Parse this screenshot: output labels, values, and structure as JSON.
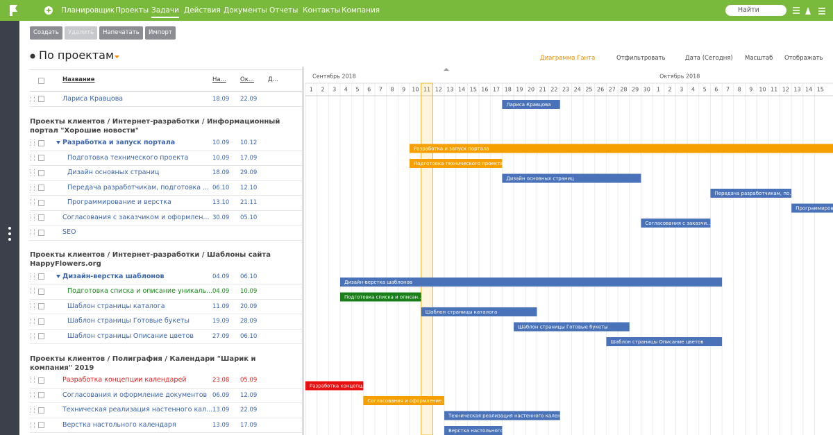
{
  "nav": {
    "items": [
      "Планировщик",
      "Проекты",
      "Задачи",
      "Действия",
      "Документы",
      "Отчеты",
      "Контакты",
      "Компания"
    ],
    "active": 2,
    "search": "Найти"
  },
  "toolbar": {
    "buttons": [
      "Создать",
      "Удалить",
      "Напечатать",
      "Импорт"
    ],
    "disabled": [
      1
    ]
  },
  "view": {
    "title": "По проектам",
    "controls": [
      "Диаграмма Ганта",
      "Отфильтровать",
      "Дата (Сегодня)",
      "Масштаб",
      "Отображать"
    ]
  },
  "table": {
    "columns": [
      "Название",
      "На...",
      "Ок...",
      "Д..."
    ]
  },
  "timeline": {
    "months": [
      "Сентябрь 2018",
      "Октябрь 2018"
    ],
    "days": [
      [
        1,
        2,
        3,
        4,
        5,
        6,
        7,
        8,
        9,
        10,
        11,
        12,
        13,
        14,
        15,
        16,
        17,
        18,
        19,
        20,
        21,
        22,
        23,
        24,
        25,
        26,
        27,
        28,
        29,
        30
      ],
      [
        1,
        2,
        3,
        4,
        5,
        6,
        7,
        8,
        9,
        10,
        11,
        12,
        13,
        14,
        15
      ]
    ]
  },
  "rows": [
    {
      "kind": "task",
      "name": "Лариса Кравцова",
      "start": "18.09",
      "end": "22.09",
      "bar": "Лариса Кравцова",
      "bar_color": "#4a72b8"
    },
    {
      "kind": "group",
      "title": "Проекты клиентов / Интернет-разработки / Информационный портал \"Хорошие новости\""
    },
    {
      "kind": "summary",
      "name": "Разработка и запуск портала",
      "start": "10.09",
      "end": "10.12",
      "bar": "Разработка и запуск портала",
      "bar_color": "#f5a000"
    },
    {
      "kind": "subtask",
      "name": "Подготовка технического проекта",
      "start": "10.09",
      "end": "17.09",
      "bar": "Подготовка технического проекта",
      "bar_color": "#f5a000"
    },
    {
      "kind": "subtask",
      "name": "Дизайн основных страниц",
      "start": "18.09",
      "end": "29.09",
      "bar": "Дизайн основных страниц",
      "bar_color": "#4a72b8"
    },
    {
      "kind": "subtask",
      "name": "Передача разработчикам, подготовка ...",
      "start": "06.10",
      "end": "12.10",
      "bar": "Передача разработчикам, по...",
      "bar_color": "#4a72b8"
    },
    {
      "kind": "subtask",
      "name": "Программирование и верстка",
      "start": "13.10",
      "end": "21.11",
      "bar": "Программирование и верстка",
      "bar_color": "#4a72b8"
    },
    {
      "kind": "task",
      "name": "Согласования с заказчиком и оформлен...",
      "start": "30.09",
      "end": "05.10",
      "bar": "Согласования с заказчи...",
      "bar_color": "#4a72b8"
    },
    {
      "kind": "task",
      "name": "SEO"
    },
    {
      "kind": "group",
      "title": "Проекты клиентов / Интернет-разработки / Шаблоны сайта HappyFlowers.org"
    },
    {
      "kind": "summary",
      "name": "Дизайн-верстка шаблонов",
      "start": "04.09",
      "end": "06.10",
      "bar": "Дизайн-верстка шаблонов",
      "bar_color": "#4a72b8"
    },
    {
      "kind": "subtask",
      "name": "Подготовка списка и описание уникаль...",
      "start": "04.09",
      "end": "10.09",
      "bar": "Подготовка списка и описан...",
      "bar_color": "#1a7f1a",
      "text_color": "#1a8a1a"
    },
    {
      "kind": "subtask",
      "name": "Шаблон страницы каталога",
      "start": "11.09",
      "end": "20.09",
      "bar": "Шаблон страницы каталога",
      "bar_color": "#4a72b8"
    },
    {
      "kind": "subtask",
      "name": "Шаблон страницы Готовые букеты",
      "start": "19.09",
      "end": "28.09",
      "bar": "Шаблон страницы Готовые букеты",
      "bar_color": "#4a72b8"
    },
    {
      "kind": "subtask",
      "name": "Шаблон страницы Описание цветов",
      "start": "27.09",
      "end": "06.10",
      "bar": "Шаблон страницы Описание цветов",
      "bar_color": "#4a72b8"
    },
    {
      "kind": "group",
      "title": "Проекты клиентов / Полиграфия / Календари \"Шарик и компания\" 2019"
    },
    {
      "kind": "task",
      "name": "Разработка концепции календарей",
      "start": "23.08",
      "end": "05.09",
      "bar": "Разработка концепц...",
      "bar_color": "#e81010",
      "text_color": "#e81c1c"
    },
    {
      "kind": "task",
      "name": "Согласования и оформление документов",
      "start": "06.09",
      "end": "12.09",
      "bar": "Согласования и оформление...",
      "bar_color": "#f5a000"
    },
    {
      "kind": "task",
      "name": "Техническая реализация настенного кал...",
      "start": "13.09",
      "end": "22.09",
      "bar": "Техническая реализация настенного кален...",
      "bar_color": "#4a72b8"
    },
    {
      "kind": "task",
      "name": "Верстка настольного календаря",
      "start": "13.09",
      "end": "17.09",
      "bar": "Верстка настольного...",
      "bar_color": "#4a72b8"
    }
  ]
}
